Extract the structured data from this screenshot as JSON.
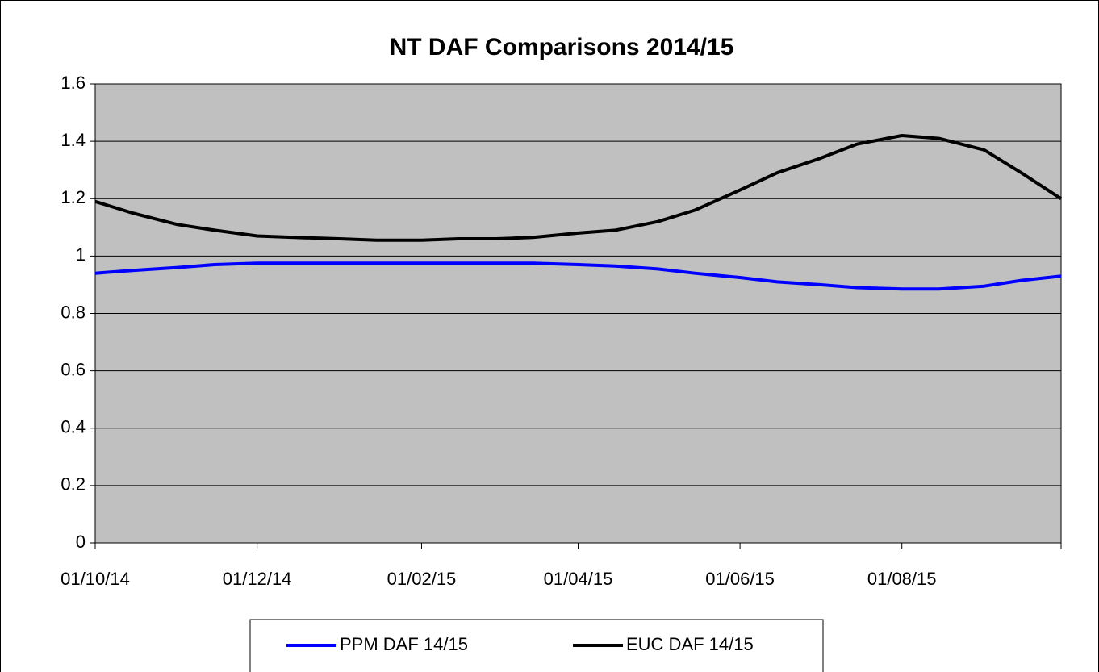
{
  "chart_data": {
    "type": "line",
    "title": "NT DAF Comparisons 2014/15",
    "x": [
      "2014-10-01",
      "2014-10-15",
      "2014-11-01",
      "2014-11-15",
      "2014-12-01",
      "2014-12-15",
      "2015-01-01",
      "2015-01-15",
      "2015-02-01",
      "2015-02-15",
      "2015-03-01",
      "2015-03-15",
      "2015-04-01",
      "2015-04-15",
      "2015-05-01",
      "2015-05-15",
      "2015-06-01",
      "2015-06-15",
      "2015-07-01",
      "2015-07-15",
      "2015-08-01",
      "2015-08-15",
      "2015-09-01",
      "2015-09-15",
      "2015-09-30"
    ],
    "series": [
      {
        "name": "PPM DAF 14/15",
        "color": "#0000ff",
        "values": [
          0.94,
          0.95,
          0.96,
          0.97,
          0.975,
          0.975,
          0.975,
          0.975,
          0.975,
          0.975,
          0.975,
          0.975,
          0.97,
          0.965,
          0.955,
          0.94,
          0.925,
          0.91,
          0.9,
          0.89,
          0.885,
          0.885,
          0.895,
          0.915,
          0.93
        ]
      },
      {
        "name": "EUC DAF 14/15",
        "color": "#000000",
        "values": [
          1.19,
          1.15,
          1.11,
          1.09,
          1.07,
          1.065,
          1.06,
          1.055,
          1.055,
          1.06,
          1.06,
          1.065,
          1.08,
          1.09,
          1.12,
          1.16,
          1.23,
          1.29,
          1.34,
          1.39,
          1.42,
          1.41,
          1.37,
          1.29,
          1.2
        ]
      }
    ],
    "xlim": [
      "2014-10-01",
      "2015-09-30"
    ],
    "xticks": [
      {
        "value": "2014-10-01",
        "label": "01/10/14"
      },
      {
        "value": "2014-12-01",
        "label": "01/12/14"
      },
      {
        "value": "2015-02-01",
        "label": "01/02/15"
      },
      {
        "value": "2015-04-01",
        "label": "01/04/15"
      },
      {
        "value": "2015-06-01",
        "label": "01/06/15"
      },
      {
        "value": "2015-08-01",
        "label": "01/08/15"
      }
    ],
    "ylim": [
      0,
      1.6
    ],
    "yticks": [
      0,
      0.2,
      0.4,
      0.6,
      0.8,
      1,
      1.2,
      1.4,
      1.6
    ],
    "grid": true,
    "legend": "bottom"
  }
}
